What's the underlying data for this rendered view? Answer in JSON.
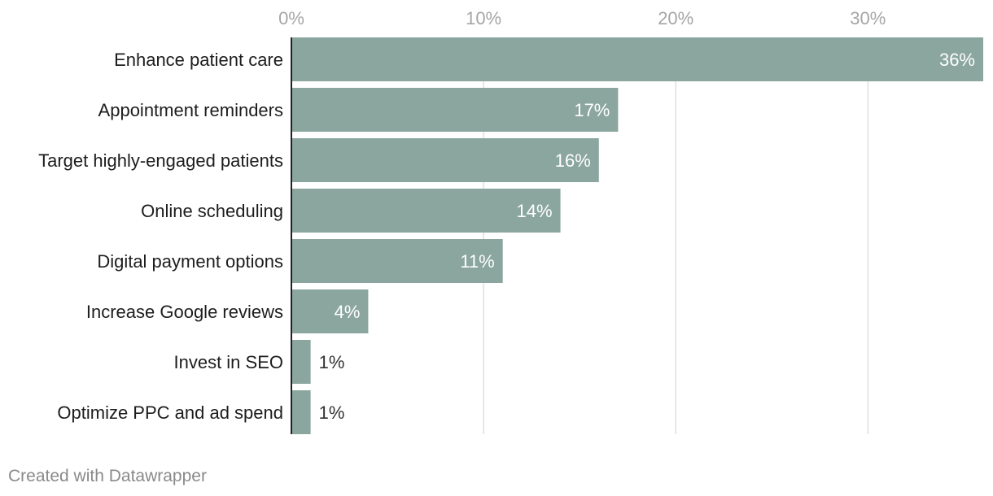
{
  "chart_data": {
    "type": "bar",
    "orientation": "horizontal",
    "title": "",
    "xlabel": "",
    "ylabel": "",
    "xlim": [
      0,
      36
    ],
    "ticks": [
      {
        "value": 0,
        "label": "0%"
      },
      {
        "value": 10,
        "label": "10%"
      },
      {
        "value": 20,
        "label": "20%"
      },
      {
        "value": 30,
        "label": "30%"
      }
    ],
    "categories": [
      "Enhance patient care",
      "Appointment reminders",
      "Target highly-engaged patients",
      "Online scheduling",
      "Digital payment options",
      "Increase Google reviews",
      "Invest in SEO",
      "Optimize PPC and ad spend"
    ],
    "values": [
      36,
      17,
      16,
      14,
      11,
      4,
      1,
      1
    ],
    "value_labels": [
      "36%",
      "17%",
      "16%",
      "14%",
      "11%",
      "4%",
      "1%",
      "1%"
    ],
    "grid": true,
    "bar_color": "#8ba69f",
    "grid_color": "#e0e0e0",
    "axis_color": "#222222"
  },
  "footer": {
    "credit": "Created with Datawrapper"
  }
}
